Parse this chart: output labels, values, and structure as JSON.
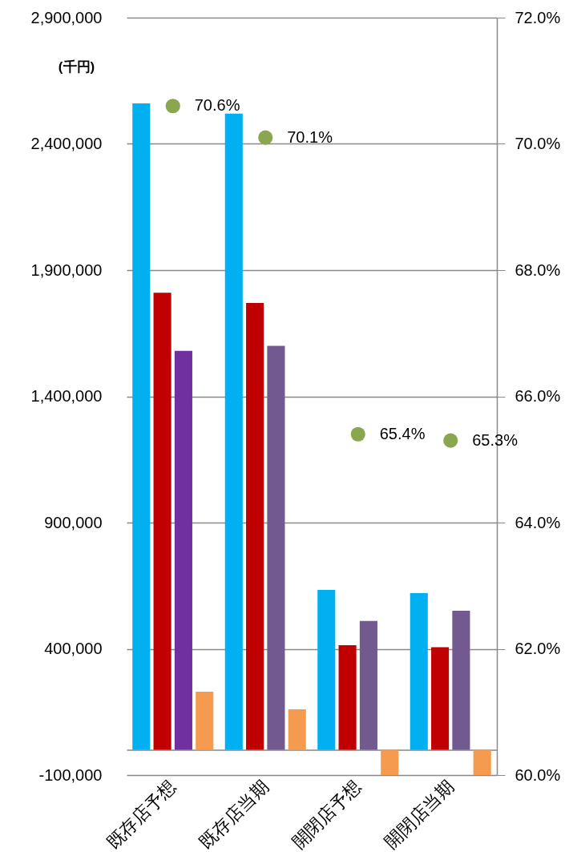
{
  "chart_data": {
    "type": "bar",
    "ylabel": "(千円)",
    "categories": [
      "既存店予想",
      "既存店当期",
      "開閉店予想",
      "開閉店当期"
    ],
    "series": [
      {
        "color": "#00b0f0",
        "values": [
          2560000,
          2520000,
          633000,
          621000
        ]
      },
      {
        "color": "#c00000",
        "values": [
          1810000,
          1770000,
          414000,
          406000
        ]
      },
      {
        "colors": [
          "#7030a0",
          "#725a90",
          "#725a90",
          "#725a90"
        ],
        "values": [
          1580000,
          1600000,
          510000,
          551000
        ]
      },
      {
        "color": "#f59b4f",
        "values": [
          230000,
          160000,
          -100000,
          -100000
        ]
      },
      {
        "type": "scatter",
        "axis": "y2",
        "marker": "circle",
        "color": "#8aa64e",
        "values": [
          70.6,
          70.1,
          65.4,
          65.3
        ],
        "value_labels": [
          "70.6%",
          "70.1%",
          "65.4%",
          "65.3%"
        ]
      }
    ],
    "ylim": [
      -100000,
      2900000
    ],
    "yticks": [
      {
        "value": -100000,
        "label": "-100,000"
      },
      {
        "value": 400000,
        "label": "400,000"
      },
      {
        "value": 900000,
        "label": "900,000"
      },
      {
        "value": 1400000,
        "label": "1,400,000"
      },
      {
        "value": 1900000,
        "label": "1,900,000"
      },
      {
        "value": 2400000,
        "label": "2,400,000"
      },
      {
        "value": 2900000,
        "label": "2,900,000"
      }
    ],
    "y2lim": [
      60,
      72
    ],
    "y2ticks": [
      {
        "value": 60,
        "label": "60.0%"
      },
      {
        "value": 62,
        "label": "62.0%"
      },
      {
        "value": 64,
        "label": "64.0%"
      },
      {
        "value": 66,
        "label": "66.0%"
      },
      {
        "value": 68,
        "label": "68.0%"
      },
      {
        "value": 70,
        "label": "70.0%"
      },
      {
        "value": 72,
        "label": "72.0%"
      }
    ],
    "grid": "y"
  }
}
